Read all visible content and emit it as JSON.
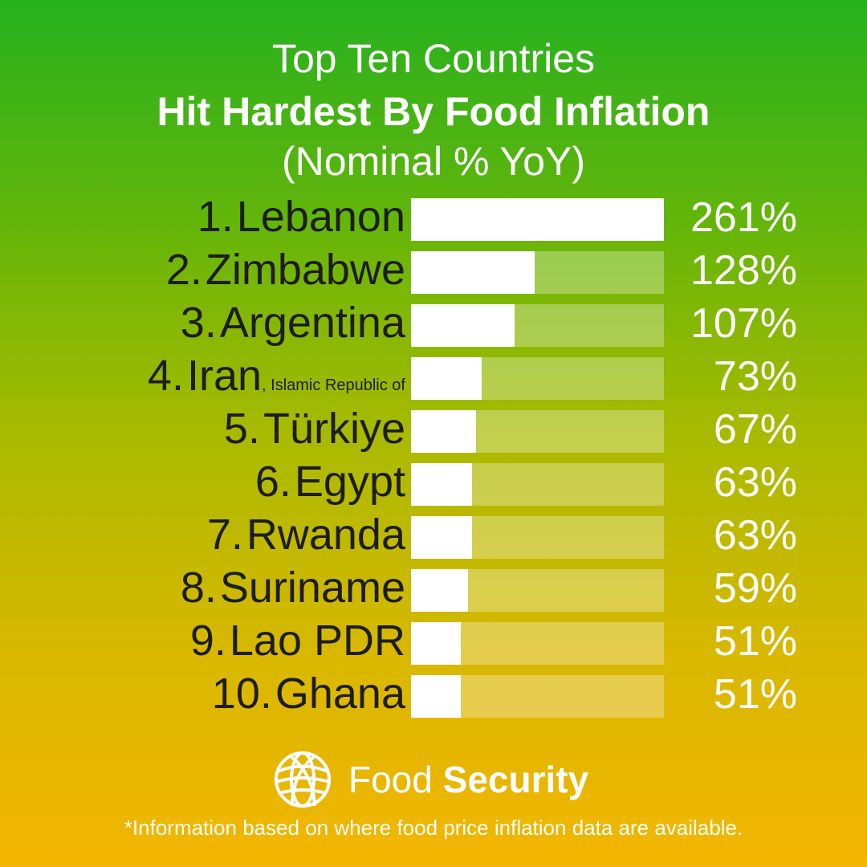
{
  "chart_data": {
    "type": "bar",
    "title": "Top Ten Countries",
    "subtitle": "Hit Hardest By Food Inflation",
    "unit_label": "(Nominal % YoY)",
    "categories": [
      "Lebanon",
      "Zimbabwe",
      "Argentina",
      "Iran",
      "Türkiye",
      "Egypt",
      "Rwanda",
      "Suriname",
      "Lao PDR",
      "Ghana"
    ],
    "ranks": [
      "1.",
      "2.",
      "3.",
      "4.",
      "5.",
      "6.",
      "7.",
      "8.",
      "9.",
      "10."
    ],
    "suffixes": [
      "",
      "",
      "",
      ", Islamic Republic of",
      "",
      "",
      "",
      "",
      "",
      ""
    ],
    "values": [
      261,
      128,
      107,
      73,
      67,
      63,
      63,
      59,
      51,
      51
    ],
    "value_labels": [
      "261%",
      "128%",
      "107%",
      "73%",
      "67%",
      "63%",
      "63%",
      "59%",
      "51%",
      "51%"
    ],
    "xlim": [
      0,
      261
    ],
    "orientation": "horizontal"
  },
  "brand": {
    "light": "Food",
    "bold": "Security",
    "icon": "globe-icon"
  },
  "footnote": "*Information based on where food price inflation data are available."
}
